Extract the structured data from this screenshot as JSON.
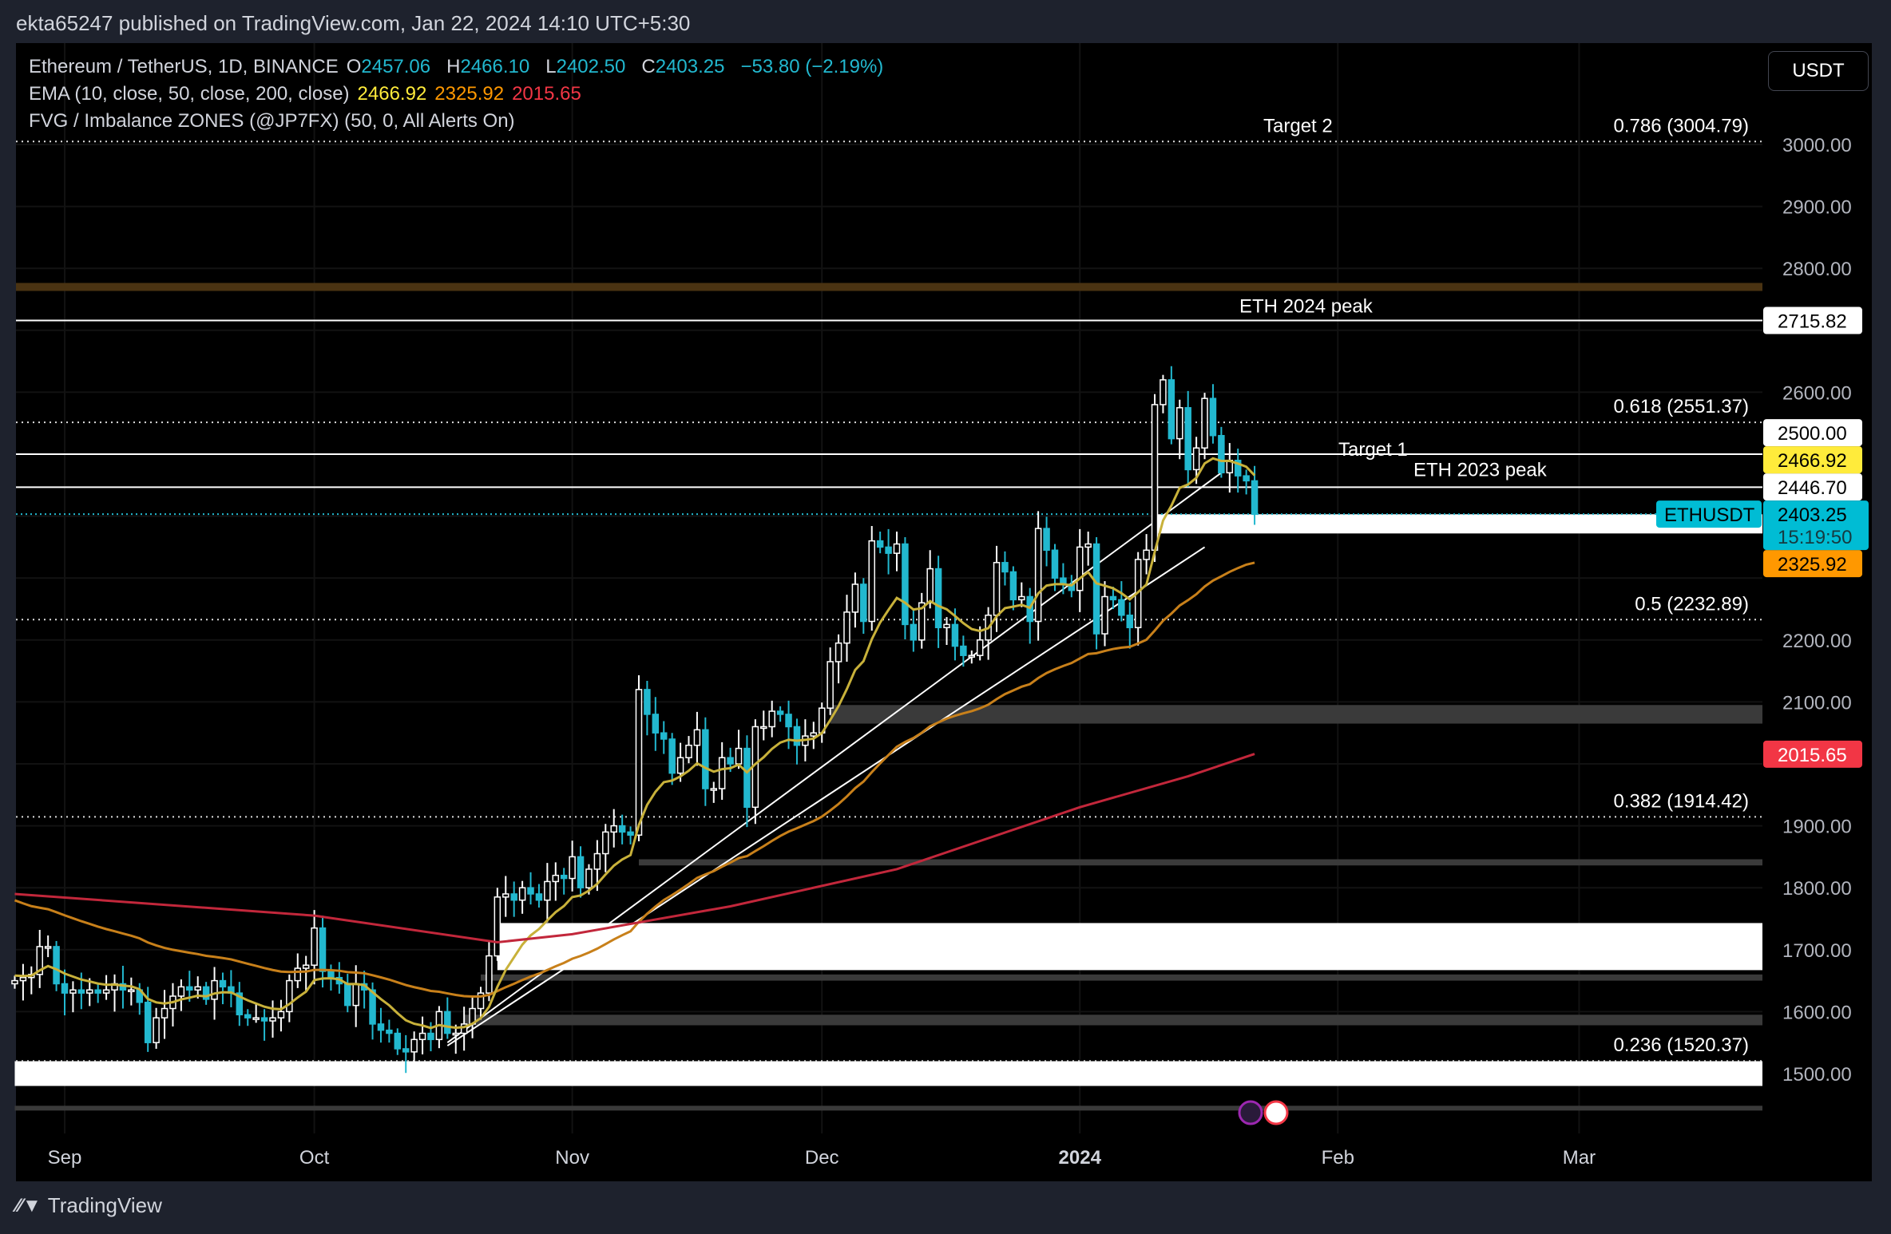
{
  "header": {
    "published": "ekta65247 published on TradingView.com, Jan 22, 2024 14:10 UTC+5:30"
  },
  "legend": {
    "symbol": "Ethereum / TetherUS, 1D, BINANCE",
    "o_label": "O",
    "o": "2457.06",
    "h_label": "H",
    "h": "2466.10",
    "l_label": "L",
    "l": "2402.50",
    "c_label": "C",
    "c": "2403.25",
    "change": "−53.80 (−2.19%)",
    "ema_label": "EMA (10, close, 50, close, 200, close)",
    "ema10": "2466.92",
    "ema50": "2325.92",
    "ema200": "2015.65",
    "fvg_label": "FVG / Imbalance ZONES (@JP7FX) (50, 0, All Alerts On)"
  },
  "currency_button": "USDT",
  "footer": {
    "logo": "TradingView"
  },
  "colors": {
    "bg": "#000000",
    "up": "#ffffff",
    "down": "#22b8cf",
    "ema10": "#c8b13a",
    "ema50": "#c8801a",
    "ema200": "#c2273b",
    "accent": "#00bcd4"
  },
  "chart_data": {
    "type": "candlestick",
    "start_day_offset_from_sep1": -6,
    "closes": [
      1650,
      1655,
      1660,
      1705,
      1705,
      1645,
      1630,
      1635,
      1630,
      1635,
      1630,
      1635,
      1645,
      1635,
      1635,
      1615,
      1550,
      1590,
      1605,
      1625,
      1640,
      1635,
      1640,
      1620,
      1650,
      1640,
      1630,
      1595,
      1590,
      1590,
      1585,
      1590,
      1600,
      1650,
      1670,
      1675,
      1735,
      1665,
      1655,
      1645,
      1610,
      1645,
      1635,
      1580,
      1570,
      1565,
      1540,
      1535,
      1555,
      1565,
      1555,
      1600,
      1565,
      1565,
      1580,
      1605,
      1630,
      1690,
      1785,
      1790,
      1780,
      1800,
      1790,
      1780,
      1810,
      1820,
      1815,
      1850,
      1800,
      1830,
      1855,
      1890,
      1900,
      1890,
      1885,
      2120,
      2080,
      2050,
      2040,
      1985,
      2010,
      2030,
      2055,
      1960,
      1960,
      2010,
      2000,
      2025,
      1930,
      2060,
      2060,
      2085,
      2080,
      2060,
      2030,
      2045,
      2050,
      2090,
      2165,
      2195,
      2245,
      2290,
      2230,
      2360,
      2350,
      2340,
      2355,
      2225,
      2200,
      2260,
      2315,
      2220,
      2225,
      2190,
      2175,
      2175,
      2200,
      2240,
      2325,
      2310,
      2265,
      2270,
      2230,
      2380,
      2345,
      2300,
      2290,
      2280,
      2350,
      2355,
      2210,
      2270,
      2265,
      2240,
      2220,
      2330,
      2345,
      2580,
      2620,
      2525,
      2575,
      2475,
      2510,
      2590,
      2530,
      2470,
      2490,
      2465,
      2457,
      2403
    ],
    "ema200_points": [
      [
        -6,
        1790
      ],
      [
        30,
        1755
      ],
      [
        52,
        1712
      ],
      [
        61,
        1725
      ],
      [
        80,
        1770
      ],
      [
        100,
        1830
      ],
      [
        122,
        1930
      ],
      [
        135,
        1980
      ],
      [
        143,
        2016
      ]
    ],
    "ema50_seed": 1785,
    "ema10_seed": 1660,
    "yaxis": {
      "ticks": [
        "3000.00",
        "2900.00",
        "2800.00",
        "2600.00",
        "2200.00",
        "2100.00",
        "1900.00",
        "1800.00",
        "1700.00",
        "1600.00",
        "1500.00"
      ],
      "range": [
        1420,
        3100
      ]
    },
    "xaxis": {
      "ticks": [
        {
          "label": "Sep",
          "day": 0
        },
        {
          "label": "Oct",
          "day": 30
        },
        {
          "label": "Nov",
          "day": 61
        },
        {
          "label": "Dec",
          "day": 91
        },
        {
          "label": "2024",
          "day": 122,
          "bold": true
        },
        {
          "label": "Feb",
          "day": 153
        },
        {
          "label": "Mar",
          "day": 182
        }
      ]
    },
    "fib_levels": [
      {
        "label": "0.786 (3004.79)",
        "price": 3004.79
      },
      {
        "label": "0.618 (2551.37)",
        "price": 2551.37
      },
      {
        "label": "0.5 (2232.89)",
        "price": 2232.89
      },
      {
        "label": "0.382 (1914.42)",
        "price": 1914.42
      },
      {
        "label": "0.236 (1520.37)",
        "price": 1520.37
      }
    ],
    "hlines": [
      {
        "price": 2715.82,
        "label": "ETH 2024 peak",
        "tag": "2715.82"
      },
      {
        "price": 2500,
        "label": "",
        "tag": "2500.00"
      },
      {
        "price": 2446.7,
        "label": "ETH 2023 peak",
        "tag": "2446.70"
      }
    ],
    "brown_line": 2770,
    "annotations": [
      {
        "text": "Target 2"
      },
      {
        "text": "Target 1"
      }
    ],
    "white_zones": [
      {
        "from": -6,
        "top": 1520,
        "bot": 1480
      },
      {
        "from": 52,
        "top": 1743,
        "bot": 1667
      },
      {
        "from": 131,
        "top": 2403,
        "bot": 2372
      }
    ],
    "gray_zones": [
      {
        "from": 92,
        "top": 2095,
        "bot": 2065
      },
      {
        "from": 69,
        "top": 1846,
        "bot": 1836
      },
      {
        "from": 50,
        "top": 1660,
        "bot": 1650
      },
      {
        "from": 48,
        "top": 1595,
        "bot": 1578
      },
      {
        "from": -6,
        "top": 1448,
        "bot": 1442
      }
    ],
    "price_tags": [
      {
        "text": "2466.92",
        "price": 2466.92,
        "color": "#ffeb3b"
      },
      {
        "text": "2325.92",
        "price": 2325.92,
        "color": "#ff9800"
      },
      {
        "text": "2015.65",
        "price": 2015.65,
        "color": "#f23645",
        "fg": "#fff"
      }
    ],
    "last": {
      "symbol": "ETHUSDT",
      "price": "2403.25",
      "countdown": "15:19:50",
      "value": 2403.25
    }
  }
}
